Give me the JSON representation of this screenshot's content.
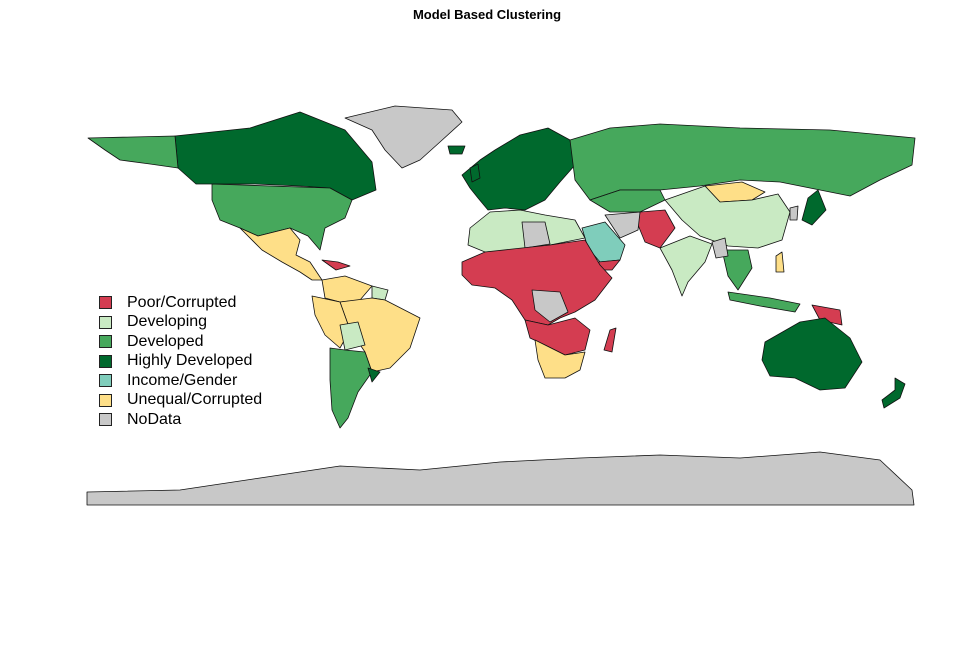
{
  "title": "Model Based Clustering",
  "legend": [
    {
      "label": "Poor/Corrupted",
      "color": "#d43d51"
    },
    {
      "label": "Developing",
      "color": "#c9eac3"
    },
    {
      "label": "Developed",
      "color": "#46a85c"
    },
    {
      "label": "Highly Developed",
      "color": "#00692d"
    },
    {
      "label": "Income/Gender",
      "color": "#7fcdbb"
    },
    {
      "label": "Unequal/Corrupted",
      "color": "#fedf88"
    },
    {
      "label": "NoData",
      "color": "#c8c8c8"
    }
  ]
}
